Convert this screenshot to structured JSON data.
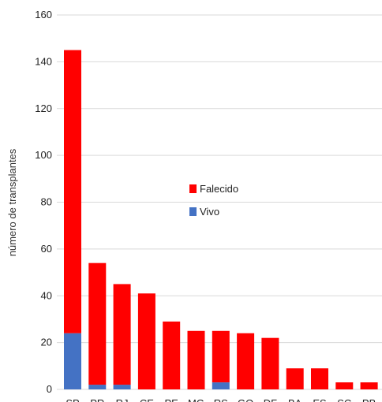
{
  "chart_data": {
    "type": "bar",
    "stacked": true,
    "ylabel": "número de transplantes",
    "xlabel": "",
    "ylim": [
      0,
      160
    ],
    "yticks": [
      0,
      20,
      40,
      60,
      80,
      100,
      120,
      140,
      160
    ],
    "grid": true,
    "legend_position": "center",
    "categories": [
      "SP",
      "PR",
      "RJ",
      "CE",
      "PE",
      "MG",
      "RS",
      "GO",
      "DF",
      "BA",
      "ES",
      "SC",
      "PB"
    ],
    "series": [
      {
        "name": "Vivo",
        "color": "#4472C4",
        "values": [
          24,
          2,
          2,
          0,
          0,
          0,
          3,
          0,
          0,
          0,
          0,
          0,
          0
        ]
      },
      {
        "name": "Falecido",
        "color": "#FF0000",
        "values": [
          121,
          52,
          43,
          41,
          29,
          25,
          22,
          24,
          22,
          9,
          9,
          3,
          3
        ]
      }
    ],
    "legend_order": [
      "Falecido",
      "Vivo"
    ]
  }
}
